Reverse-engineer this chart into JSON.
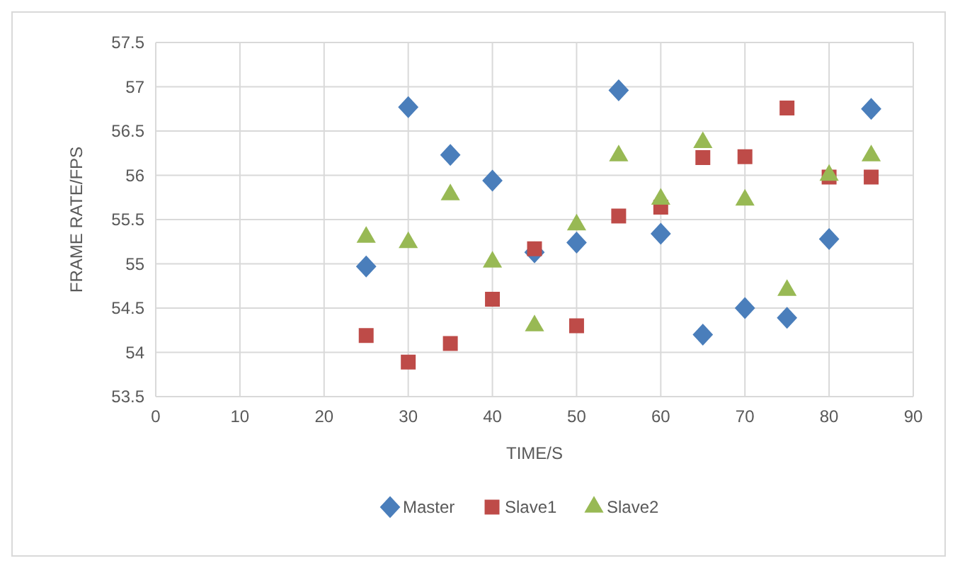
{
  "chart_data": {
    "type": "scatter",
    "xlabel": "TIME/S",
    "ylabel": "FRAME RATE/FPS",
    "xlim": [
      0,
      90
    ],
    "xticks": [
      0,
      10,
      20,
      30,
      40,
      50,
      60,
      70,
      80,
      90
    ],
    "ylim": [
      53.5,
      57.5
    ],
    "yticks": [
      53.5,
      54,
      54.5,
      55,
      55.5,
      56,
      56.5,
      57,
      57.5
    ],
    "grid": true,
    "legend": "bottom",
    "x": [
      25,
      30,
      35,
      40,
      45,
      50,
      55,
      60,
      65,
      70,
      75,
      80,
      85
    ],
    "series": [
      {
        "name": "Master",
        "color": "#4a7ebb",
        "marker": "diamond",
        "values": [
          54.97,
          56.77,
          56.23,
          55.94,
          55.13,
          55.24,
          56.96,
          55.34,
          54.2,
          54.5,
          54.39,
          55.28,
          56.75
        ]
      },
      {
        "name": "Slave1",
        "color": "#be4b48",
        "marker": "square",
        "values": [
          54.19,
          53.89,
          54.1,
          54.6,
          55.17,
          54.3,
          55.54,
          55.64,
          56.2,
          56.21,
          56.76,
          55.98,
          55.98
        ]
      },
      {
        "name": "Slave2",
        "color": "#98b954",
        "marker": "triangle",
        "values": [
          55.3,
          55.24,
          55.78,
          55.02,
          54.3,
          55.44,
          56.22,
          55.73,
          56.37,
          55.72,
          54.7,
          56.0,
          56.22
        ]
      }
    ]
  }
}
